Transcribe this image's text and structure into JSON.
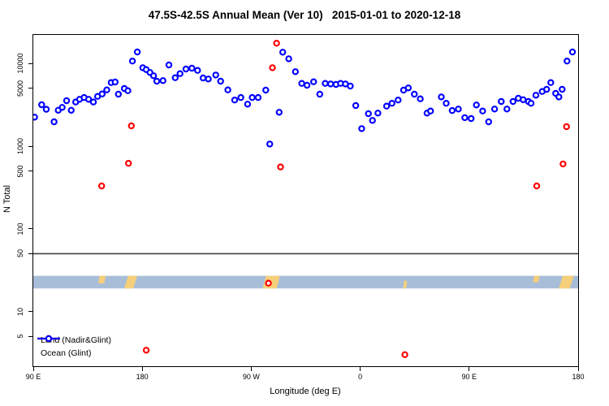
{
  "chart_data": {
    "type": "scatter",
    "title": "47.5S-42.5S Annual Mean (Ver 10)   2015-01-01 to 2020-12-18",
    "xlabel": "Longitude (deg E)",
    "ylabel": "N Total",
    "x_axis": {
      "description": "degrees eastward along axis starting at 90E, wrapping through 180, 90W, 0, 90E to 180",
      "range_deg": [
        0,
        450
      ],
      "tick_positions_deg": [
        0,
        90,
        180,
        270,
        360,
        450
      ],
      "tick_labels": [
        "90 E",
        "180",
        "90 W",
        "0",
        "90 E",
        "180"
      ]
    },
    "y_axis": {
      "scale": "log",
      "tick_values": [
        10000,
        5000,
        1000,
        500,
        100,
        50,
        10,
        5
      ],
      "tick_labels": [
        "10000",
        "5000",
        "1000",
        "500",
        "100",
        "50",
        "10",
        "5"
      ],
      "range": [
        2.2,
        20000
      ]
    },
    "grid": false,
    "legend_position": "bottom-left-inside",
    "series": [
      {
        "name": "Land (Nadir&Glint)",
        "color": "#ff0000",
        "marker": "open-circle",
        "points_deg_n": [
          [
            56.5,
            330
          ],
          [
            78.6,
            620
          ],
          [
            81,
            1760
          ],
          [
            93.3,
            3.4
          ],
          [
            194.2,
            22
          ],
          [
            197.5,
            8900
          ],
          [
            200.9,
            17600
          ],
          [
            204.2,
            560
          ],
          [
            306.9,
            3
          ],
          [
            415.8,
            330
          ],
          [
            437.5,
            610
          ],
          [
            440.4,
            1720
          ]
        ]
      },
      {
        "name": "Ocean (Glint)",
        "color": "#0000ff",
        "marker": "open-circle",
        "points_deg_n": [
          [
            1.1,
            2240
          ],
          [
            6.9,
            3170
          ],
          [
            10.7,
            2790
          ],
          [
            17.2,
            1970
          ],
          [
            20.6,
            2720
          ],
          [
            23.9,
            2940
          ],
          [
            27.5,
            3550
          ],
          [
            31.3,
            2720
          ],
          [
            35,
            3420
          ],
          [
            38.2,
            3690
          ],
          [
            42,
            3880
          ],
          [
            45.7,
            3690
          ],
          [
            49.6,
            3420
          ],
          [
            53.1,
            4000
          ],
          [
            56.9,
            4280
          ],
          [
            60.7,
            4790
          ],
          [
            64.3,
            5880
          ],
          [
            67.6,
            5970
          ],
          [
            70.3,
            4250
          ],
          [
            75.2,
            4980
          ],
          [
            78.1,
            4690
          ],
          [
            81.9,
            10700
          ],
          [
            85.9,
            13800
          ],
          [
            90.4,
            8900
          ],
          [
            93.3,
            8440
          ],
          [
            96.4,
            7780
          ],
          [
            99.3,
            7110
          ],
          [
            102,
            6110
          ],
          [
            107.1,
            6210
          ],
          [
            112,
            9600
          ],
          [
            117.2,
            6730
          ],
          [
            121.2,
            7530
          ],
          [
            126.1,
            8570
          ],
          [
            131,
            8770
          ],
          [
            135.7,
            8260
          ],
          [
            140.2,
            6680
          ],
          [
            144.6,
            6490
          ],
          [
            150.7,
            7260
          ],
          [
            154.7,
            6110
          ],
          [
            160.7,
            4790
          ],
          [
            166.3,
            3610
          ],
          [
            171.4,
            3880
          ],
          [
            177,
            3220
          ],
          [
            180.8,
            3880
          ],
          [
            185.7,
            3880
          ],
          [
            192,
            4760
          ],
          [
            195.3,
            1060
          ],
          [
            203.1,
            2570
          ],
          [
            206,
            13700
          ],
          [
            211,
            11400
          ],
          [
            216.5,
            7960
          ],
          [
            221.7,
            5740
          ],
          [
            226.1,
            5460
          ],
          [
            231.5,
            6010
          ],
          [
            236.6,
            4250
          ],
          [
            241.1,
            5740
          ],
          [
            245.6,
            5660
          ],
          [
            250,
            5580
          ],
          [
            253.8,
            5740
          ],
          [
            257.8,
            5660
          ],
          [
            261.8,
            5330
          ],
          [
            266.3,
            3100
          ],
          [
            271.2,
            1630
          ],
          [
            276.8,
            2470
          ],
          [
            280.1,
            2050
          ],
          [
            284.6,
            2510
          ],
          [
            291.8,
            3050
          ],
          [
            296.2,
            3300
          ],
          [
            301.3,
            3610
          ],
          [
            305.8,
            4760
          ],
          [
            309.8,
            5060
          ],
          [
            314.7,
            4250
          ],
          [
            319.6,
            3740
          ],
          [
            325.2,
            2510
          ],
          [
            328.1,
            2660
          ],
          [
            337,
            3940
          ],
          [
            341,
            3300
          ],
          [
            346,
            2700
          ],
          [
            351.1,
            2810
          ],
          [
            356.4,
            2210
          ],
          [
            361.6,
            2160
          ],
          [
            366,
            3150
          ],
          [
            371.1,
            2660
          ],
          [
            376.1,
            1970
          ],
          [
            381,
            2810
          ],
          [
            386.5,
            3470
          ],
          [
            391.2,
            2810
          ],
          [
            396.2,
            3470
          ],
          [
            400.6,
            3800
          ],
          [
            404.6,
            3650
          ],
          [
            408.9,
            3470
          ],
          [
            411.1,
            3300
          ],
          [
            415.1,
            4130
          ],
          [
            420.3,
            4580
          ],
          [
            424,
            4870
          ],
          [
            427.4,
            5880
          ],
          [
            431.4,
            4350
          ],
          [
            434.1,
            3940
          ],
          [
            436.8,
            4870
          ],
          [
            440.8,
            10700
          ],
          [
            445.3,
            13800
          ]
        ]
      }
    ],
    "annotations": {
      "threshold_line_n": 50,
      "threshold_line_color": "#3f3f3f"
    },
    "geography_band": {
      "description": "ocean/land strip along the latitude band",
      "top_n": 27,
      "bottom_n": 19,
      "ocean_color": "#a8bdd8",
      "land_color": "#f6cf7b",
      "land_patches_deg": [
        {
          "start_deg": 53.5,
          "end_deg": 58.5,
          "slant": 2,
          "top_frac": 0,
          "bottom_frac": 0.6
        },
        {
          "start_deg": 75,
          "end_deg": 82.5,
          "slant": 5,
          "top_frac": 0,
          "bottom_frac": 1
        },
        {
          "start_deg": 189.5,
          "end_deg": 201,
          "slant": 4,
          "top_frac": 0,
          "bottom_frac": 1
        },
        {
          "start_deg": 305.5,
          "end_deg": 308,
          "slant": 1,
          "top_frac": 0.4,
          "bottom_frac": 1
        },
        {
          "start_deg": 412.5,
          "end_deg": 417,
          "slant": 2,
          "top_frac": 0,
          "bottom_frac": 0.5
        },
        {
          "start_deg": 434,
          "end_deg": 443,
          "slant": 5,
          "top_frac": 0,
          "bottom_frac": 1
        }
      ]
    }
  }
}
